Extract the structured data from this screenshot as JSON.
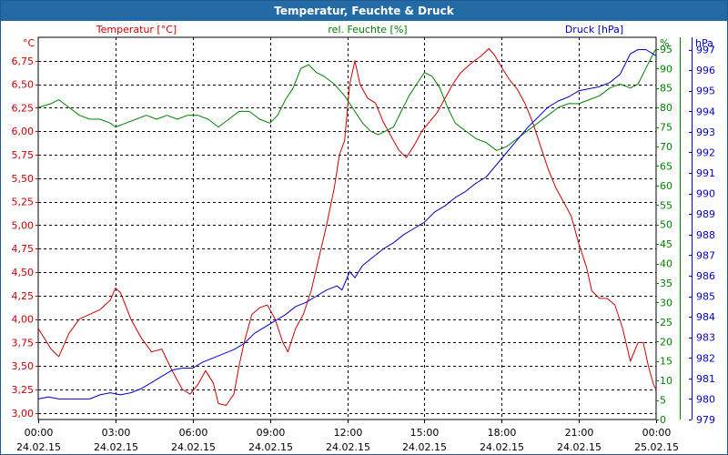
{
  "title": "Temperatur, Feuchte & Druck",
  "colors": {
    "temperature": "#cc0000",
    "humidity": "#008000",
    "pressure": "#0000cc",
    "title_bg": "#246ba6",
    "grid": "#000000"
  },
  "chart_data": {
    "type": "line",
    "title": "Temperatur, Feuchte & Druck",
    "x_ticks": [
      {
        "time": "00:00",
        "date": "24.02.15"
      },
      {
        "time": "03:00",
        "date": "24.02.15"
      },
      {
        "time": "06:00",
        "date": "24.02.15"
      },
      {
        "time": "09:00",
        "date": "24.02.15"
      },
      {
        "time": "12:00",
        "date": "24.02.15"
      },
      {
        "time": "15:00",
        "date": "24.02.15"
      },
      {
        "time": "18:00",
        "date": "24.02.15"
      },
      {
        "time": "21:00",
        "date": "24.02.15"
      },
      {
        "time": "00:00",
        "date": "25.02.15"
      }
    ],
    "x_range_hours": [
      0,
      24
    ],
    "grid": true,
    "axes": {
      "temperature": {
        "label": "Temperatur [°C]",
        "unit": "°C",
        "range": [
          2.93,
          7.0
        ],
        "ticks": [
          "3,00",
          "3,25",
          "3,50",
          "3,75",
          "4,00",
          "4,25",
          "4,50",
          "4,75",
          "5,00",
          "5,25",
          "5,50",
          "5,75",
          "6,00",
          "6,25",
          "6,50",
          "6,75"
        ],
        "tick_values": [
          3.0,
          3.25,
          3.5,
          3.75,
          4.0,
          4.25,
          4.5,
          4.75,
          5.0,
          5.25,
          5.5,
          5.75,
          6.0,
          6.25,
          6.5,
          6.75
        ]
      },
      "humidity": {
        "label": "rel. Feuchte [%]",
        "unit": "%",
        "range": [
          0,
          98
        ],
        "ticks": [
          "0",
          "5",
          "10",
          "15",
          "20",
          "25",
          "30",
          "35",
          "40",
          "45",
          "50",
          "55",
          "60",
          "65",
          "70",
          "75",
          "80",
          "85",
          "90",
          "95"
        ],
        "tick_values": [
          0,
          5,
          10,
          15,
          20,
          25,
          30,
          35,
          40,
          45,
          50,
          55,
          60,
          65,
          70,
          75,
          80,
          85,
          90,
          95
        ]
      },
      "pressure": {
        "label": "Druck [hPa]",
        "unit": "hPa",
        "range": [
          979,
          997.6
        ],
        "ticks": [
          "979",
          "980",
          "981",
          "982",
          "983",
          "984",
          "985",
          "986",
          "987",
          "988",
          "989",
          "990",
          "991",
          "992",
          "993",
          "994",
          "995",
          "996",
          "997"
        ],
        "tick_values": [
          979,
          980,
          981,
          982,
          983,
          984,
          985,
          986,
          987,
          988,
          989,
          990,
          991,
          992,
          993,
          994,
          995,
          996,
          997
        ]
      }
    },
    "series": [
      {
        "name": "Temperatur [°C]",
        "axis": "temperature",
        "points": [
          [
            0,
            3.9
          ],
          [
            0.5,
            3.68
          ],
          [
            0.8,
            3.6
          ],
          [
            1.2,
            3.85
          ],
          [
            1.6,
            4.0
          ],
          [
            2.0,
            4.05
          ],
          [
            2.4,
            4.1
          ],
          [
            2.8,
            4.2
          ],
          [
            3.0,
            4.33
          ],
          [
            3.2,
            4.28
          ],
          [
            3.6,
            4.0
          ],
          [
            4.0,
            3.8
          ],
          [
            4.4,
            3.65
          ],
          [
            4.8,
            3.68
          ],
          [
            5.2,
            3.45
          ],
          [
            5.6,
            3.25
          ],
          [
            5.9,
            3.2
          ],
          [
            6.2,
            3.3
          ],
          [
            6.5,
            3.45
          ],
          [
            6.8,
            3.32
          ],
          [
            7.0,
            3.1
          ],
          [
            7.3,
            3.08
          ],
          [
            7.6,
            3.2
          ],
          [
            7.8,
            3.5
          ],
          [
            8.0,
            3.75
          ],
          [
            8.3,
            4.05
          ],
          [
            8.6,
            4.12
          ],
          [
            8.9,
            4.15
          ],
          [
            9.2,
            4.0
          ],
          [
            9.5,
            3.75
          ],
          [
            9.7,
            3.65
          ],
          [
            10.0,
            3.9
          ],
          [
            10.3,
            4.05
          ],
          [
            10.6,
            4.3
          ],
          [
            10.9,
            4.65
          ],
          [
            11.2,
            5.0
          ],
          [
            11.5,
            5.4
          ],
          [
            11.7,
            5.75
          ],
          [
            11.9,
            5.9
          ],
          [
            12.1,
            6.5
          ],
          [
            12.3,
            6.75
          ],
          [
            12.5,
            6.5
          ],
          [
            12.8,
            6.35
          ],
          [
            13.1,
            6.3
          ],
          [
            13.4,
            6.1
          ],
          [
            13.7,
            5.95
          ],
          [
            14.0,
            5.8
          ],
          [
            14.3,
            5.72
          ],
          [
            14.6,
            5.85
          ],
          [
            14.9,
            6.0
          ],
          [
            15.2,
            6.1
          ],
          [
            15.5,
            6.2
          ],
          [
            15.8,
            6.35
          ],
          [
            16.1,
            6.5
          ],
          [
            16.4,
            6.62
          ],
          [
            16.8,
            6.72
          ],
          [
            17.2,
            6.8
          ],
          [
            17.5,
            6.88
          ],
          [
            17.7,
            6.82
          ],
          [
            18.0,
            6.68
          ],
          [
            18.3,
            6.55
          ],
          [
            18.6,
            6.45
          ],
          [
            18.9,
            6.3
          ],
          [
            19.2,
            6.1
          ],
          [
            19.5,
            5.85
          ],
          [
            19.8,
            5.6
          ],
          [
            20.1,
            5.4
          ],
          [
            20.4,
            5.25
          ],
          [
            20.7,
            5.1
          ],
          [
            21.0,
            4.8
          ],
          [
            21.3,
            4.55
          ],
          [
            21.5,
            4.3
          ],
          [
            21.8,
            4.22
          ],
          [
            22.1,
            4.22
          ],
          [
            22.4,
            4.15
          ],
          [
            22.7,
            3.9
          ],
          [
            23.0,
            3.55
          ],
          [
            23.3,
            3.75
          ],
          [
            23.5,
            3.75
          ],
          [
            23.7,
            3.5
          ],
          [
            23.9,
            3.3
          ],
          [
            24.0,
            3.25
          ]
        ]
      },
      {
        "name": "rel. Feuchte [%]",
        "axis": "humidity",
        "points": [
          [
            0,
            80
          ],
          [
            0.5,
            81
          ],
          [
            0.8,
            82
          ],
          [
            1.2,
            80
          ],
          [
            1.6,
            78
          ],
          [
            2.0,
            77
          ],
          [
            2.4,
            77
          ],
          [
            2.8,
            76
          ],
          [
            3.0,
            75
          ],
          [
            3.4,
            76
          ],
          [
            3.8,
            77
          ],
          [
            4.2,
            78
          ],
          [
            4.6,
            77
          ],
          [
            5.0,
            78
          ],
          [
            5.4,
            77
          ],
          [
            5.8,
            78
          ],
          [
            6.2,
            78
          ],
          [
            6.6,
            77
          ],
          [
            7.0,
            75
          ],
          [
            7.4,
            77
          ],
          [
            7.8,
            79
          ],
          [
            8.2,
            79
          ],
          [
            8.6,
            77
          ],
          [
            9.0,
            76
          ],
          [
            9.3,
            78
          ],
          [
            9.6,
            82
          ],
          [
            9.9,
            85
          ],
          [
            10.2,
            90
          ],
          [
            10.5,
            91
          ],
          [
            10.8,
            89
          ],
          [
            11.1,
            88
          ],
          [
            11.5,
            86
          ],
          [
            11.9,
            83
          ],
          [
            12.3,
            79
          ],
          [
            12.6,
            76
          ],
          [
            12.9,
            74
          ],
          [
            13.2,
            73
          ],
          [
            13.5,
            74
          ],
          [
            13.8,
            75
          ],
          [
            14.1,
            79
          ],
          [
            14.4,
            83
          ],
          [
            14.7,
            86
          ],
          [
            15.0,
            89
          ],
          [
            15.3,
            88
          ],
          [
            15.6,
            85
          ],
          [
            15.9,
            80
          ],
          [
            16.2,
            76
          ],
          [
            16.6,
            74
          ],
          [
            17.0,
            72
          ],
          [
            17.4,
            71
          ],
          [
            17.8,
            69
          ],
          [
            18.2,
            70
          ],
          [
            18.6,
            72
          ],
          [
            19.0,
            74
          ],
          [
            19.4,
            76
          ],
          [
            19.8,
            78
          ],
          [
            20.2,
            80
          ],
          [
            20.6,
            81
          ],
          [
            21.0,
            81
          ],
          [
            21.4,
            82
          ],
          [
            21.8,
            83
          ],
          [
            22.2,
            85
          ],
          [
            22.6,
            86
          ],
          [
            23.0,
            85
          ],
          [
            23.3,
            86
          ],
          [
            23.6,
            90
          ],
          [
            23.9,
            94
          ],
          [
            24.0,
            95
          ]
        ]
      },
      {
        "name": "Druck [hPa]",
        "axis": "pressure",
        "points": [
          [
            0,
            980
          ],
          [
            0.4,
            980.1
          ],
          [
            0.8,
            980
          ],
          [
            1.2,
            980
          ],
          [
            1.6,
            980
          ],
          [
            2.0,
            980
          ],
          [
            2.4,
            980.2
          ],
          [
            2.8,
            980.3
          ],
          [
            3.2,
            980.2
          ],
          [
            3.6,
            980.3
          ],
          [
            4.0,
            980.5
          ],
          [
            4.4,
            980.8
          ],
          [
            4.8,
            981.1
          ],
          [
            5.2,
            981.4
          ],
          [
            5.6,
            981.5
          ],
          [
            6.0,
            981.5
          ],
          [
            6.4,
            981.8
          ],
          [
            6.8,
            982.0
          ],
          [
            7.2,
            982.2
          ],
          [
            7.6,
            982.4
          ],
          [
            8.0,
            982.7
          ],
          [
            8.4,
            983.2
          ],
          [
            8.8,
            983.5
          ],
          [
            9.2,
            983.8
          ],
          [
            9.6,
            984.1
          ],
          [
            10.0,
            984.5
          ],
          [
            10.4,
            984.7
          ],
          [
            10.8,
            985.0
          ],
          [
            11.2,
            985.3
          ],
          [
            11.6,
            985.5
          ],
          [
            11.8,
            985.3
          ],
          [
            12.1,
            986.2
          ],
          [
            12.3,
            985.9
          ],
          [
            12.6,
            986.5
          ],
          [
            13.0,
            986.9
          ],
          [
            13.4,
            987.3
          ],
          [
            13.8,
            987.6
          ],
          [
            14.2,
            988.0
          ],
          [
            14.6,
            988.3
          ],
          [
            15.0,
            988.6
          ],
          [
            15.4,
            989.1
          ],
          [
            15.8,
            989.4
          ],
          [
            16.2,
            989.8
          ],
          [
            16.6,
            990.1
          ],
          [
            17.0,
            990.5
          ],
          [
            17.4,
            990.8
          ],
          [
            17.8,
            991.4
          ],
          [
            18.2,
            992.0
          ],
          [
            18.6,
            992.6
          ],
          [
            19.0,
            993.2
          ],
          [
            19.4,
            993.7
          ],
          [
            19.8,
            994.2
          ],
          [
            20.2,
            994.5
          ],
          [
            20.6,
            994.7
          ],
          [
            21.0,
            995.0
          ],
          [
            21.4,
            995.1
          ],
          [
            21.8,
            995.2
          ],
          [
            22.2,
            995.4
          ],
          [
            22.6,
            995.8
          ],
          [
            23.0,
            996.8
          ],
          [
            23.3,
            997.0
          ],
          [
            23.6,
            997.0
          ],
          [
            24.0,
            996.7
          ]
        ]
      }
    ]
  }
}
